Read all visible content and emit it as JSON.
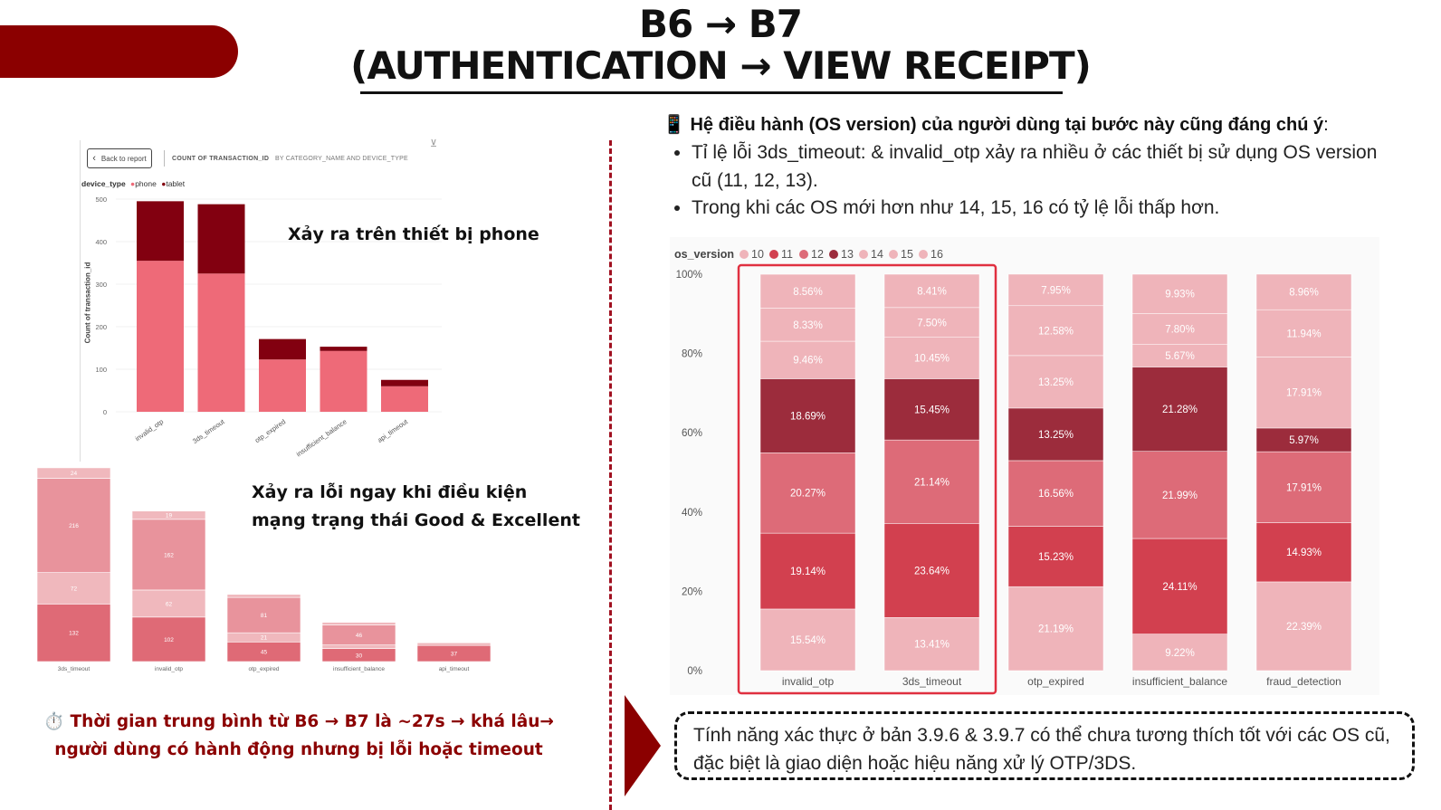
{
  "title": {
    "line1": "B6 → B7",
    "line2": "(AUTHENTICATION → VIEW RECEIPT)"
  },
  "left": {
    "chart1_header": {
      "back_label": "Back to report",
      "title": "COUNT OF TRANSACTION_ID",
      "subtitle": "BY CATEGORY_NAME AND DEVICE_TYPE",
      "legend_title": "device_type",
      "legend_phone": "phone",
      "legend_tablet": "tablet",
      "ylabel": "Count of transaction_id"
    },
    "annotation_phone": "Xảy ra trên thiết bị phone",
    "annotation_network_line1": "Xảy ra lỗi ngay khi điều kiện",
    "annotation_network_line2": "mạng trạng thái Good & Excellent",
    "note_line1": "⏱️ Thời gian trung bình từ B6 → B7 là ~27s → khá lâu→",
    "note_line2": "người dùng có hành động nhưng bị lỗi hoặc timeout"
  },
  "right": {
    "heading_icon": "📱",
    "heading": "Hệ điều hành (OS version) của người dùng tại bước này cũng đáng chú ý",
    "heading_colon": ":",
    "bullets": [
      "Tỉ lệ lỗi 3ds_timeout:  & invalid_otp xảy ra nhiều ở các thiết bị sử dụng OS version cũ (11, 12, 13).",
      "Trong khi các OS mới hơn như 14, 15, 16 có tỷ lệ lỗi thấp hơn."
    ],
    "conclusion": "Tính năng xác thực ở bản 3.9.6 & 3.9.7 có thể chưa tương thích tốt với các OS cũ, đặc biệt là giao diện hoặc hiệu năng xử lý OTP/3DS."
  },
  "colors": {
    "brand_dark_red": "#8b0000",
    "phone": "#ee6a78",
    "tablet": "#820010",
    "os_10": "#efb4ba",
    "os_11": "#d2404f",
    "os_12": "#dd6b78",
    "os_13": "#9c2c3c",
    "os_14": "#efb4ba",
    "os_15": "#efb4ba",
    "os_16": "#efb4ba",
    "highlight": "#e03040"
  },
  "chart_data": [
    {
      "type": "bar",
      "stacked": true,
      "categories": [
        "invalid_otp",
        "3ds_timeout",
        "otp_expired",
        "insufficient_balance",
        "api_timeout"
      ],
      "series": [
        {
          "name": "phone",
          "values": [
            355,
            325,
            123,
            143,
            60
          ]
        },
        {
          "name": "tablet",
          "values": [
            140,
            163,
            48,
            10,
            15
          ]
        }
      ],
      "ylabel": "Count of transaction_id",
      "yticks": [
        0,
        100,
        200,
        300,
        400,
        500
      ],
      "ylim": [
        0,
        500
      ],
      "legend": "top-left"
    },
    {
      "type": "bar",
      "stacked": true,
      "categories": [
        "3ds_timeout",
        "invalid_otp",
        "otp_expired",
        "insufficient_balance",
        "api_timeout"
      ],
      "segments": [
        {
          "values": [
            132,
            102,
            45,
            30,
            37
          ],
          "labels": [
            "132",
            "102",
            "45",
            "30",
            "37"
          ]
        },
        {
          "values": [
            72,
            62,
            21,
            8,
            6
          ],
          "labels": [
            "72",
            "62",
            "21",
            "",
            ""
          ]
        },
        {
          "values": [
            216,
            162,
            81,
            46,
            0
          ],
          "labels": [
            "216",
            "162",
            "81",
            "46",
            ""
          ]
        },
        {
          "values": [
            24,
            19,
            7,
            6,
            0
          ],
          "labels": [
            "24",
            "19",
            "",
            "",
            ""
          ]
        }
      ],
      "ylim": [
        0,
        448
      ]
    },
    {
      "type": "bar",
      "stacked": true,
      "percent": true,
      "legend_title": "os_version",
      "legend": "top-left",
      "categories": [
        "invalid_otp",
        "3ds_timeout",
        "otp_expired",
        "insufficient_balance",
        "fraud_detection"
      ],
      "yticks": [
        "0%",
        "20%",
        "40%",
        "60%",
        "80%",
        "100%"
      ],
      "highlight": [
        "invalid_otp",
        "3ds_timeout"
      ],
      "series": [
        {
          "name": "10",
          "values": [
            15.54,
            13.41,
            21.19,
            9.22,
            22.39
          ],
          "labels": [
            "15.54%",
            "13.41%",
            "21.19%",
            "9.22%",
            "22.39%"
          ]
        },
        {
          "name": "11",
          "values": [
            19.14,
            23.64,
            15.23,
            24.11,
            14.93
          ],
          "labels": [
            "19.14%",
            "23.64%",
            "15.23%",
            "24.11%",
            "14.93%"
          ]
        },
        {
          "name": "12",
          "values": [
            20.27,
            21.14,
            16.56,
            21.99,
            17.91
          ],
          "labels": [
            "20.27%",
            "21.14%",
            "16.56%",
            "21.99%",
            "17.91%"
          ]
        },
        {
          "name": "13",
          "values": [
            18.69,
            15.45,
            13.25,
            21.28,
            5.97
          ],
          "labels": [
            "18.69%",
            "15.45%",
            "13.25%",
            "21.28%",
            "5.97%"
          ]
        },
        {
          "name": "14",
          "values": [
            9.46,
            10.45,
            13.25,
            5.67,
            17.91
          ],
          "labels": [
            "9.46%",
            "10.45%",
            "13.25%",
            "5.67%",
            "17.91%"
          ]
        },
        {
          "name": "15",
          "values": [
            8.33,
            7.5,
            12.58,
            7.8,
            11.94
          ],
          "labels": [
            "8.33%",
            "7.50%",
            "12.58%",
            "7.80%",
            "11.94%"
          ]
        },
        {
          "name": "16",
          "values": [
            8.56,
            8.41,
            7.95,
            9.93,
            8.96
          ],
          "labels": [
            "8.56%",
            "8.41%",
            "7.95%",
            "9.93%",
            "8.96%"
          ]
        }
      ]
    }
  ]
}
